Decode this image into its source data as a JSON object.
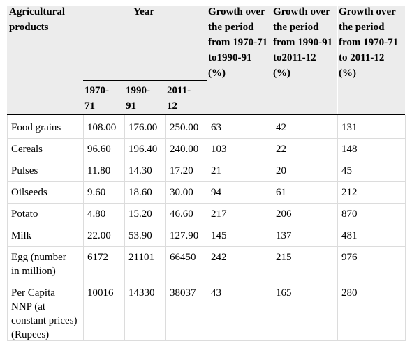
{
  "header": {
    "product_line1": "Agricultural",
    "product_line2": "products",
    "year": "Year",
    "years": [
      {
        "line1": "1970-",
        "line2": "71"
      },
      {
        "line1": "1990-",
        "line2": "91"
      },
      {
        "line1": "2011-",
        "line2": "12"
      }
    ],
    "growth1": [
      "Growth over",
      "the period",
      "from 1970-71",
      "to1990-91",
      "(%)"
    ],
    "growth2": [
      "Growth over",
      "the period",
      "from 1990-91",
      "to2011-12",
      "(%)"
    ],
    "growth3": [
      "Growth over",
      "the period",
      "from 1970-71",
      "to 2011-12",
      "(%)"
    ]
  },
  "rows": [
    {
      "product": [
        "Food grains"
      ],
      "v1": "108.00",
      "v2": "176.00",
      "v3": "250.00",
      "g1": "63",
      "g2": "42",
      "g3": "131"
    },
    {
      "product": [
        "Cereals"
      ],
      "v1": "96.60",
      "v2": "196.40",
      "v3": "240.00",
      "g1": "103",
      "g2": "22",
      "g3": "148"
    },
    {
      "product": [
        "Pulses"
      ],
      "v1": "11.80",
      "v2": "14.30",
      "v3": "17.20",
      "g1": "21",
      "g2": "20",
      "g3": "45"
    },
    {
      "product": [
        "Oilseeds"
      ],
      "v1": "9.60",
      "v2": "18.60",
      "v3": "30.00",
      "g1": "94",
      "g2": "61",
      "g3": "212"
    },
    {
      "product": [
        "Potato"
      ],
      "v1": "4.80",
      "v2": "15.20",
      "v3": "46.60",
      "g1": "217",
      "g2": "206",
      "g3": "870"
    },
    {
      "product": [
        "Milk"
      ],
      "v1": "22.00",
      "v2": "53.90",
      "v3": "127.90",
      "g1": "145",
      "g2": "137",
      "g3": "481"
    },
    {
      "product": [
        "Egg (number",
        "in million)"
      ],
      "v1": "6172",
      "v2": "21101",
      "v3": "66450",
      "g1": "242",
      "g2": "215",
      "g3": "976"
    },
    {
      "product": [
        "Per Capita",
        "NNP (at",
        "constant prices)",
        "(Rupees)"
      ],
      "v1": "10016",
      "v2": "14330",
      "v3": "38037",
      "g1": "43",
      "g2": "165",
      "g3": "280"
    }
  ]
}
